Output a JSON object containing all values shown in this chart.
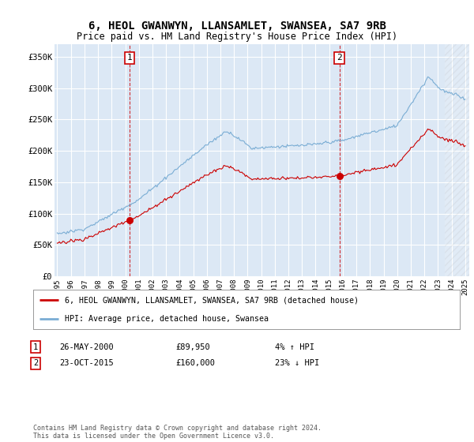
{
  "title": "6, HEOL GWANWYN, LLANSAMLET, SWANSEA, SA7 9RB",
  "subtitle": "Price paid vs. HM Land Registry's House Price Index (HPI)",
  "ylim": [
    0,
    370000
  ],
  "yticks": [
    0,
    50000,
    100000,
    150000,
    200000,
    250000,
    300000,
    350000
  ],
  "ytick_labels": [
    "£0",
    "£50K",
    "£100K",
    "£150K",
    "£200K",
    "£250K",
    "£300K",
    "£350K"
  ],
  "hpi_color": "#7aadd4",
  "price_color": "#cc0000",
  "marker1_price": 89950,
  "marker2_price": 160000,
  "legend_entry1": "6, HEOL GWANWYN, LLANSAMLET, SWANSEA, SA7 9RB (detached house)",
  "legend_entry2": "HPI: Average price, detached house, Swansea",
  "table_row1": [
    "1",
    "26-MAY-2000",
    "£89,950",
    "4% ↑ HPI"
  ],
  "table_row2": [
    "2",
    "23-OCT-2015",
    "£160,000",
    "23% ↓ HPI"
  ],
  "footer": "Contains HM Land Registry data © Crown copyright and database right 2024.\nThis data is licensed under the Open Government Licence v3.0.",
  "plot_bg": "#dce8f5",
  "grid_color": "#ffffff",
  "sale1_year": 2000.37,
  "sale2_year": 2015.79
}
